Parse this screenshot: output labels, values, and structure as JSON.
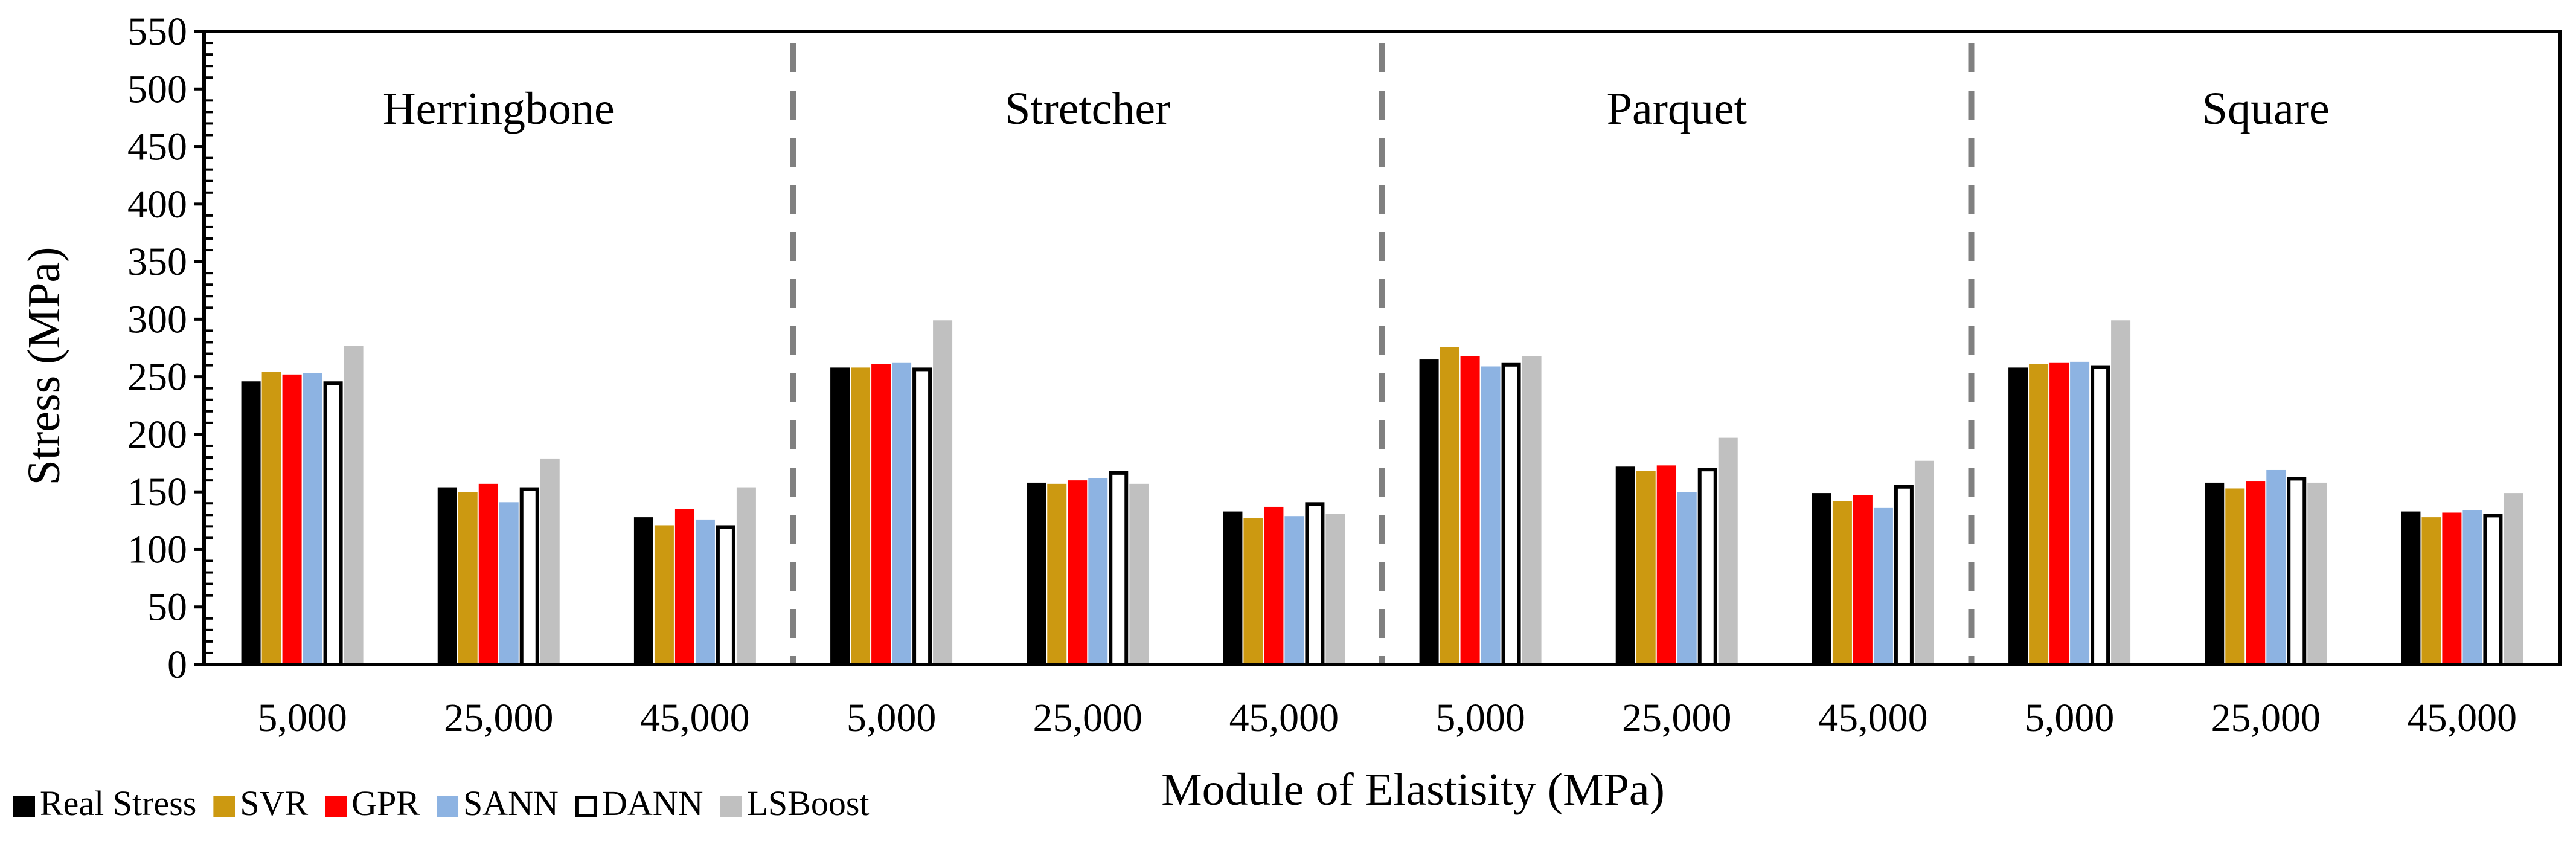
{
  "chart_data": {
    "type": "bar",
    "title": "",
    "xlabel": "Module of Elastisity (MPa)",
    "ylabel": "Stress (MPa)",
    "ylim": [
      0,
      550
    ],
    "y_ticks": [
      "0",
      "50",
      "100",
      "150",
      "200",
      "250",
      "300",
      "350",
      "400",
      "450",
      "500",
      "550"
    ],
    "grid": false,
    "legend_position": "bottom-left",
    "groups": [
      "Herringbone",
      "Stretcher",
      "Parquet",
      "Square"
    ],
    "categories": [
      "5,000",
      "25,000",
      "45,000",
      "5,000",
      "25,000",
      "45,000",
      "5,000",
      "25,000",
      "45,000",
      "5,000",
      "25,000",
      "45,000"
    ],
    "series": [
      {
        "name": "Real Stress",
        "color": "#000000",
        "hollow": false,
        "values": [
          246,
          154,
          128,
          258,
          158,
          133,
          265,
          172,
          149,
          258,
          158,
          133
        ]
      },
      {
        "name": "SVR",
        "color": "#CC9911",
        "hollow": false,
        "values": [
          254,
          150,
          121,
          258,
          157,
          127,
          276,
          168,
          142,
          261,
          153,
          128
        ]
      },
      {
        "name": "GPR",
        "color": "#FF0000",
        "hollow": false,
        "values": [
          252,
          157,
          135,
          261,
          160,
          137,
          268,
          173,
          147,
          262,
          159,
          132
        ]
      },
      {
        "name": "SANN",
        "color": "#8DB3E2",
        "hollow": false,
        "values": [
          253,
          141,
          126,
          262,
          162,
          129,
          259,
          150,
          136,
          263,
          169,
          134
        ]
      },
      {
        "name": "DANN",
        "color": "#FFFFFF",
        "hollow": true,
        "values": [
          246,
          154,
          121,
          258,
          168,
          141,
          262,
          171,
          156,
          260,
          163,
          131
        ]
      },
      {
        "name": "LSBoost",
        "color": "#C0C0C0",
        "hollow": false,
        "values": [
          277,
          179,
          154,
          299,
          157,
          131,
          268,
          197,
          177,
          299,
          158,
          149
        ]
      }
    ],
    "separator_color": "#808080"
  }
}
